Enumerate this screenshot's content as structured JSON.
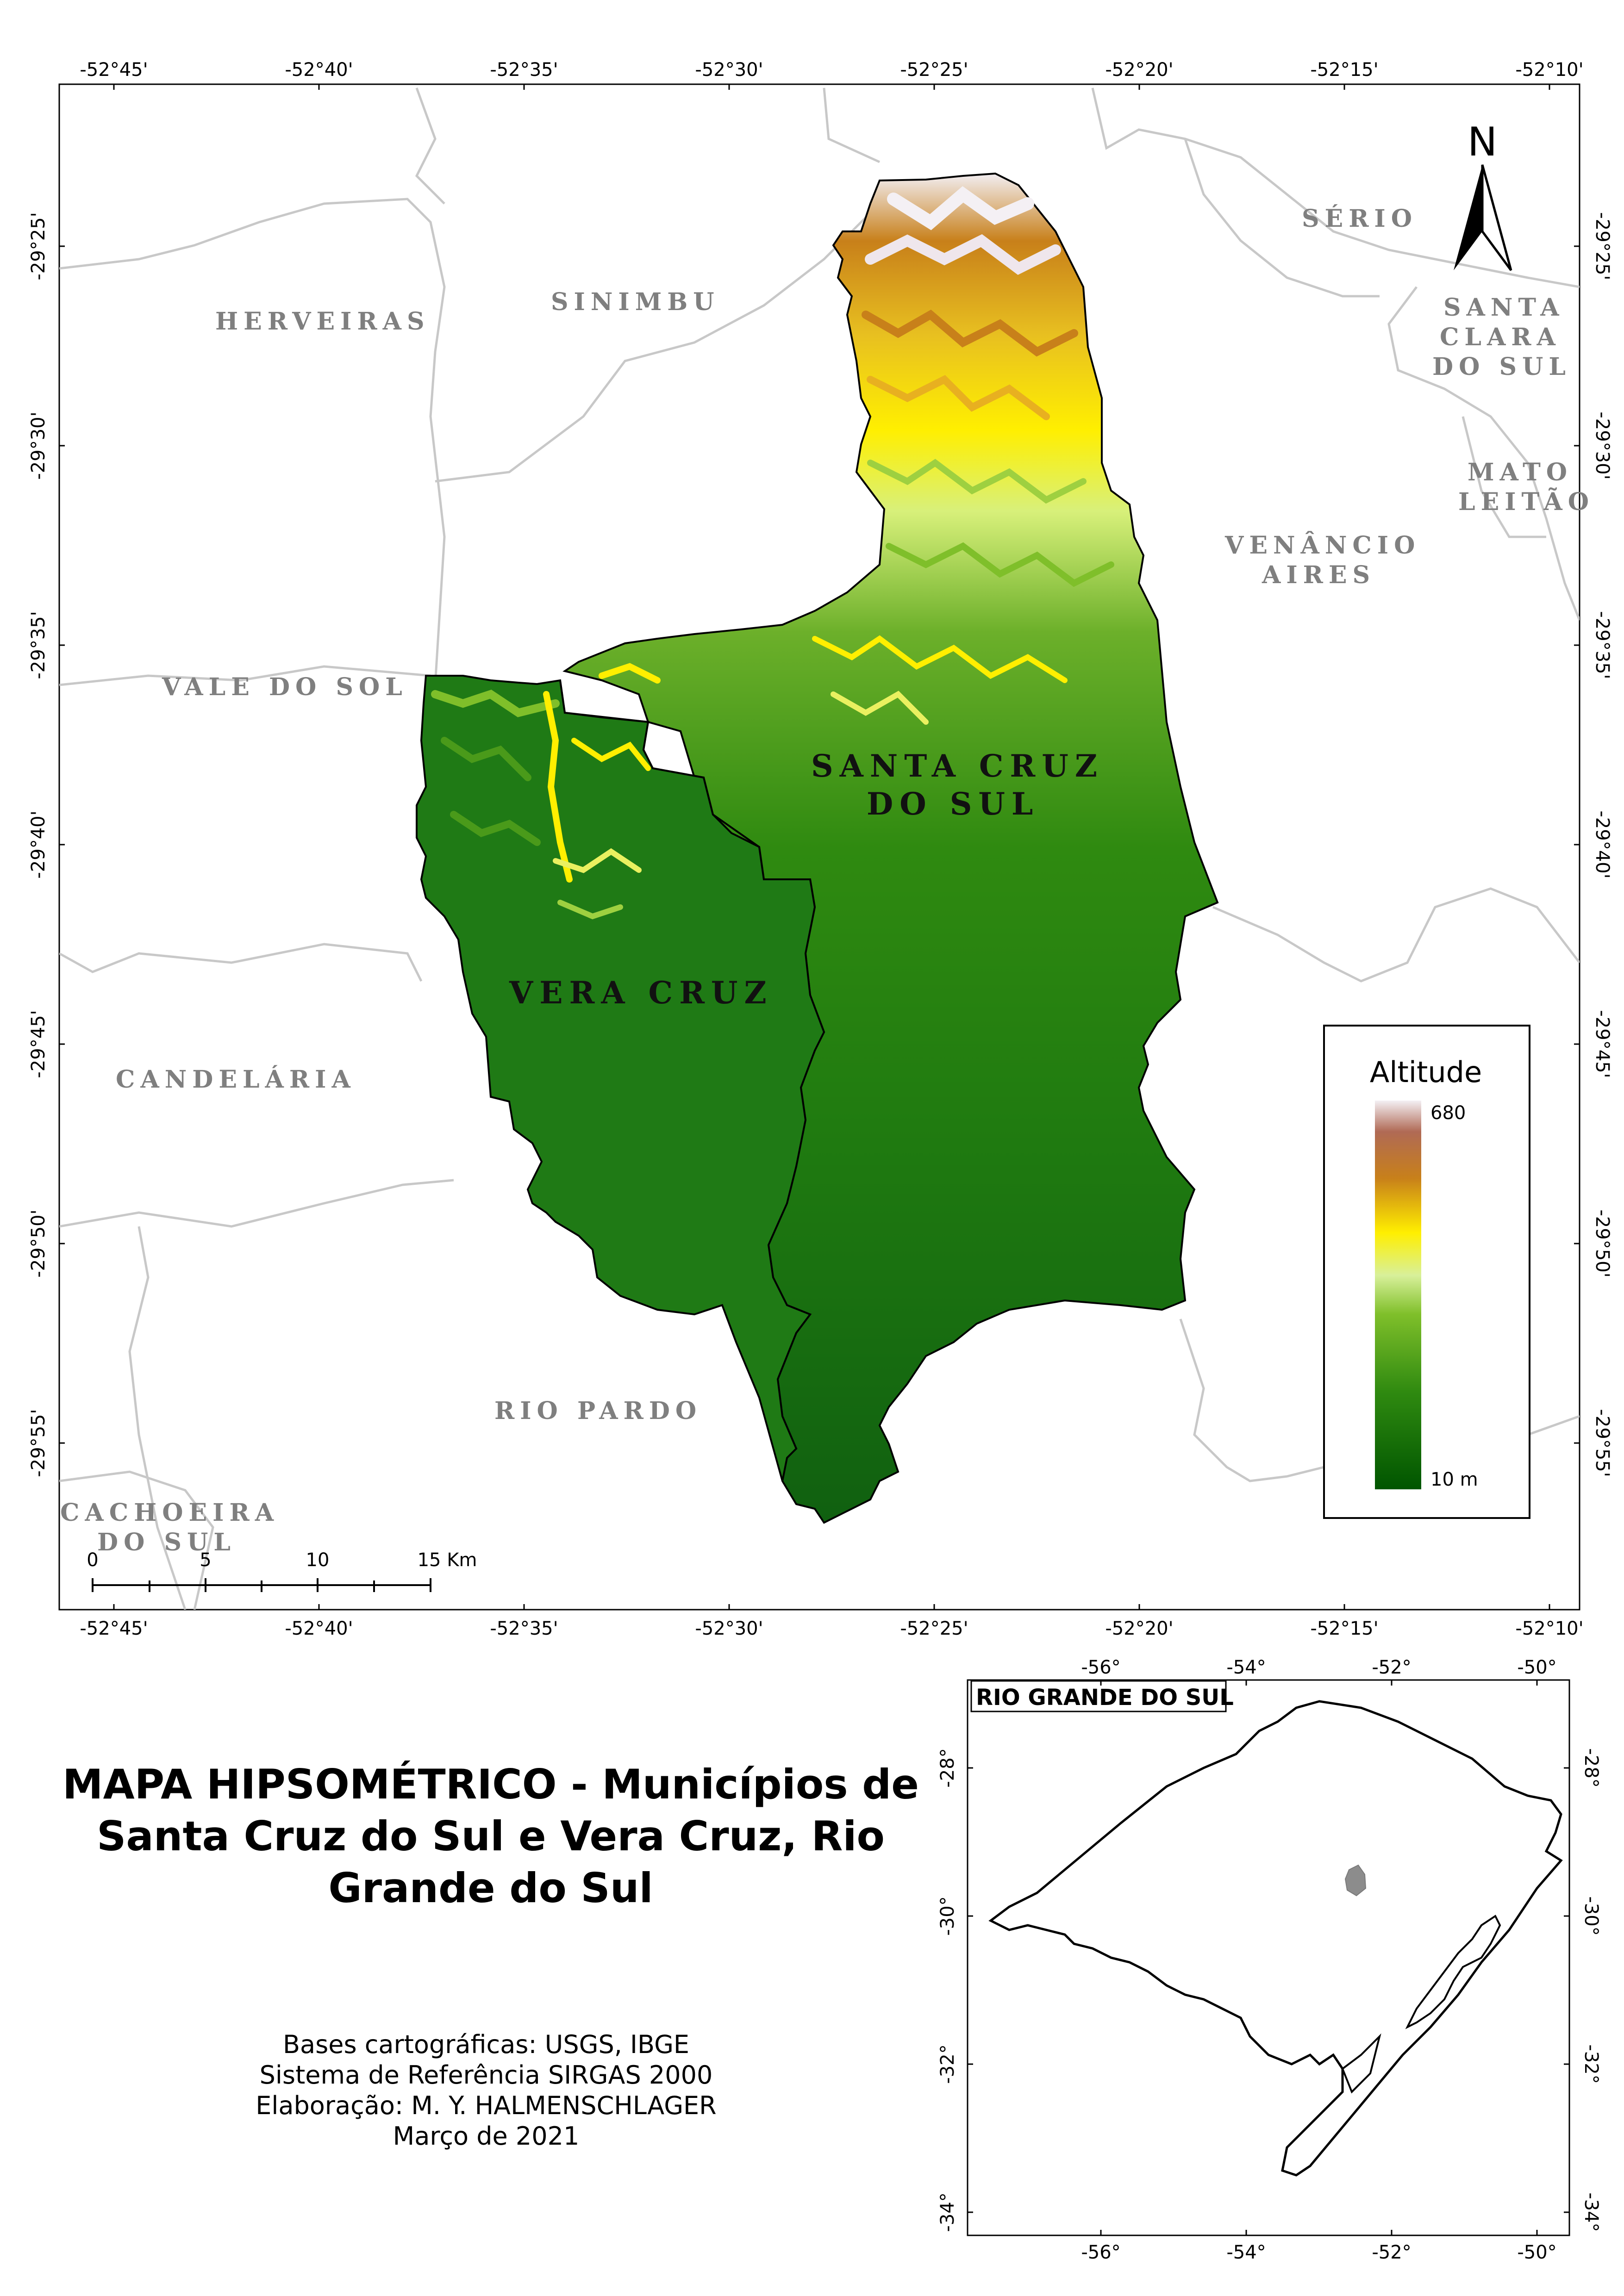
{
  "map": {
    "lon_ticks": [
      "-52°45'",
      "-52°40'",
      "-52°35'",
      "-52°30'",
      "-52°25'",
      "-52°20'",
      "-52°15'",
      "-52°10'"
    ],
    "lat_ticks": [
      "-29°25'",
      "-29°30'",
      "-29°35'",
      "-29°40'",
      "-29°45'",
      "-29°50'",
      "-29°55'"
    ],
    "neighbors": {
      "herveiras": "HERVEIRAS",
      "sinimbu": "SINIMBU",
      "serio": "SÉRIO",
      "santa_clara_1": "SANTA",
      "santa_clara_2": "CLARA",
      "santa_clara_3": "DO SUL",
      "mato_leitao_1": "MATO",
      "mato_leitao_2": "LEITÃO",
      "venancio_1": "VENÂNCIO",
      "venancio_2": "AIRES",
      "vale_do_sol": "VALE DO SOL",
      "candelaria": "CANDELÁRIA",
      "rio_pardo": "RIO PARDO",
      "cachoeira_1": "CACHOEIRA",
      "cachoeira_2": "DO SUL"
    },
    "study_area": {
      "santa_cruz_1": "SANTA CRUZ",
      "santa_cruz_2": "DO SUL",
      "vera_cruz": "VERA CRUZ"
    },
    "north_label": "N",
    "scale_labels": [
      "0",
      "5",
      "10",
      "15 Km"
    ],
    "colors": {
      "low": "#0a5a0a",
      "mid": "#7fbf2a",
      "light": "#d8f07a",
      "yellow": "#ffef00",
      "orange": "#c8801a",
      "brown": "#b06a55",
      "high": "#f2eef2",
      "inset_highlight": "#8c8c8c"
    }
  },
  "legend": {
    "title": "Altitude",
    "max_label": "680",
    "min_label": "10 m"
  },
  "inset": {
    "title": "RIO GRANDE DO SUL",
    "lon_ticks": [
      "-56°",
      "-54°",
      "-52°",
      "-50°"
    ],
    "lat_ticks": [
      "-28°",
      "-30°",
      "-32°",
      "-34°"
    ]
  },
  "title_lines": [
    "MAPA HIPSOMÉTRICO - Municípios de",
    "Santa Cruz do Sul e Vera Cruz, Rio",
    "Grande do Sul"
  ],
  "credits": [
    "Bases cartográficas: USGS, IBGE",
    "Sistema de Referência SIRGAS 2000",
    "Elaboração: M. Y. HALMENSCHLAGER",
    "Março de 2021"
  ]
}
